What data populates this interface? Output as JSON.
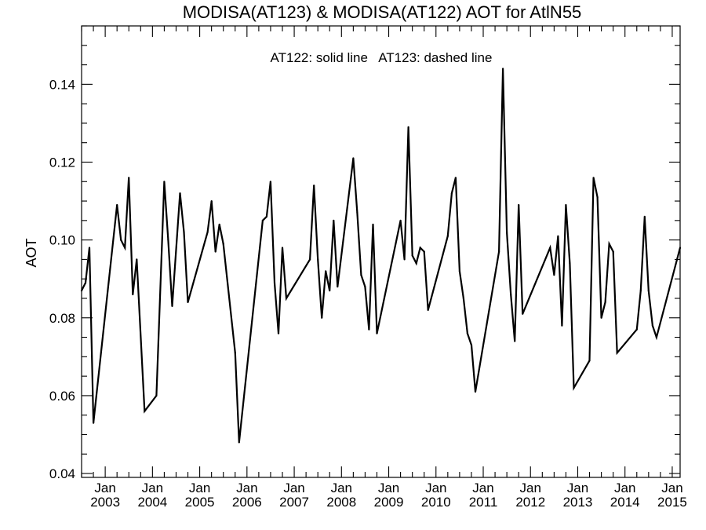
{
  "chart_data": {
    "type": "line",
    "title": "MODISA(AT123) & MODISA(AT122)  AOT for AtlN55",
    "annotation": "AT122: solid line   AT123: dashed line",
    "ylabel": "AOT",
    "xlabel": "",
    "xlim": [
      "2002-07-01",
      "2015-03-01"
    ],
    "ylim": [
      0.039,
      0.155
    ],
    "y_ticks": [
      0.04,
      0.06,
      0.08,
      0.1,
      0.12,
      0.14
    ],
    "y_tick_labels": [
      "0.04",
      "0.06",
      "0.08",
      "0.10",
      "0.12",
      "0.14"
    ],
    "x_ticks": [
      {
        "month": "Jan",
        "year": "2003",
        "date": "2003-01-01"
      },
      {
        "month": "Jan",
        "year": "2004",
        "date": "2004-01-01"
      },
      {
        "month": "Jan",
        "year": "2005",
        "date": "2005-01-01"
      },
      {
        "month": "Jan",
        "year": "2006",
        "date": "2006-01-01"
      },
      {
        "month": "Jan",
        "year": "2007",
        "date": "2007-01-01"
      },
      {
        "month": "Jan",
        "year": "2008",
        "date": "2008-01-01"
      },
      {
        "month": "Jan",
        "year": "2009",
        "date": "2009-01-01"
      },
      {
        "month": "Jan",
        "year": "2010",
        "date": "2010-01-01"
      },
      {
        "month": "Jan",
        "year": "2011",
        "date": "2011-01-01"
      },
      {
        "month": "Jan",
        "year": "2012",
        "date": "2012-01-01"
      },
      {
        "month": "Jan",
        "year": "2013",
        "date": "2013-01-01"
      },
      {
        "month": "Jan",
        "year": "2014",
        "date": "2014-01-01"
      },
      {
        "month": "Jan",
        "year": "2015",
        "date": "2015-01-01"
      }
    ],
    "grid": false,
    "series": [
      {
        "line_style": "solid",
        "points": [
          [
            "2002-07-01",
            0.087
          ],
          [
            "2002-08-01",
            0.089
          ],
          [
            "2002-09-01",
            0.098
          ],
          [
            "2002-10-01",
            0.053
          ],
          [
            "2003-04-01",
            0.109
          ],
          [
            "2003-05-01",
            0.1
          ],
          [
            "2003-06-01",
            0.098
          ],
          [
            "2003-07-01",
            0.116
          ],
          [
            "2003-08-01",
            0.086
          ],
          [
            "2003-09-01",
            0.095
          ],
          [
            "2003-11-01",
            0.056
          ],
          [
            "2004-02-01",
            0.06
          ],
          [
            "2004-04-01",
            0.115
          ],
          [
            "2004-05-01",
            0.1
          ],
          [
            "2004-06-01",
            0.083
          ],
          [
            "2004-08-01",
            0.112
          ],
          [
            "2004-09-01",
            0.102
          ],
          [
            "2004-10-01",
            0.084
          ],
          [
            "2005-03-01",
            0.102
          ],
          [
            "2005-04-01",
            0.11
          ],
          [
            "2005-05-01",
            0.097
          ],
          [
            "2005-06-01",
            0.104
          ],
          [
            "2005-07-01",
            0.099
          ],
          [
            "2005-10-01",
            0.071
          ],
          [
            "2005-11-01",
            0.048
          ],
          [
            "2006-05-01",
            0.105
          ],
          [
            "2006-06-01",
            0.106
          ],
          [
            "2006-07-01",
            0.115
          ],
          [
            "2006-08-01",
            0.089
          ],
          [
            "2006-09-01",
            0.076
          ],
          [
            "2006-10-01",
            0.098
          ],
          [
            "2006-11-01",
            0.085
          ],
          [
            "2007-05-01",
            0.095
          ],
          [
            "2007-06-01",
            0.114
          ],
          [
            "2007-07-01",
            0.095
          ],
          [
            "2007-08-01",
            0.08
          ],
          [
            "2007-09-01",
            0.092
          ],
          [
            "2007-10-01",
            0.087
          ],
          [
            "2007-11-01",
            0.105
          ],
          [
            "2007-12-01",
            0.088
          ],
          [
            "2008-04-01",
            0.121
          ],
          [
            "2008-05-01",
            0.107
          ],
          [
            "2008-06-01",
            0.091
          ],
          [
            "2008-07-01",
            0.088
          ],
          [
            "2008-08-01",
            0.077
          ],
          [
            "2008-09-01",
            0.104
          ],
          [
            "2008-10-01",
            0.076
          ],
          [
            "2009-04-01",
            0.105
          ],
          [
            "2009-05-01",
            0.095
          ],
          [
            "2009-06-01",
            0.129
          ],
          [
            "2009-07-01",
            0.096
          ],
          [
            "2009-08-01",
            0.094
          ],
          [
            "2009-09-01",
            0.098
          ],
          [
            "2009-10-01",
            0.097
          ],
          [
            "2009-11-01",
            0.082
          ],
          [
            "2010-04-01",
            0.101
          ],
          [
            "2010-05-01",
            0.112
          ],
          [
            "2010-06-01",
            0.116
          ],
          [
            "2010-07-01",
            0.092
          ],
          [
            "2010-08-01",
            0.085
          ],
          [
            "2010-09-01",
            0.076
          ],
          [
            "2010-10-01",
            0.073
          ],
          [
            "2010-11-01",
            0.061
          ],
          [
            "2011-05-01",
            0.097
          ],
          [
            "2011-06-01",
            0.144
          ],
          [
            "2011-07-01",
            0.102
          ],
          [
            "2011-08-01",
            0.086
          ],
          [
            "2011-09-01",
            0.074
          ],
          [
            "2011-10-01",
            0.109
          ],
          [
            "2011-11-01",
            0.081
          ],
          [
            "2012-06-01",
            0.098
          ],
          [
            "2012-07-01",
            0.091
          ],
          [
            "2012-08-01",
            0.101
          ],
          [
            "2012-09-01",
            0.078
          ],
          [
            "2012-10-01",
            0.109
          ],
          [
            "2012-11-01",
            0.094
          ],
          [
            "2012-12-01",
            0.062
          ],
          [
            "2013-04-01",
            0.069
          ],
          [
            "2013-05-01",
            0.116
          ],
          [
            "2013-06-01",
            0.111
          ],
          [
            "2013-07-01",
            0.08
          ],
          [
            "2013-08-01",
            0.084
          ],
          [
            "2013-09-01",
            0.099
          ],
          [
            "2013-10-01",
            0.097
          ],
          [
            "2013-11-01",
            0.071
          ],
          [
            "2014-04-01",
            0.077
          ],
          [
            "2014-05-01",
            0.087
          ],
          [
            "2014-06-01",
            0.106
          ],
          [
            "2014-07-01",
            0.087
          ],
          [
            "2014-08-01",
            0.078
          ],
          [
            "2014-09-01",
            0.075
          ],
          [
            "2015-03-01",
            0.098
          ]
        ]
      }
    ]
  }
}
